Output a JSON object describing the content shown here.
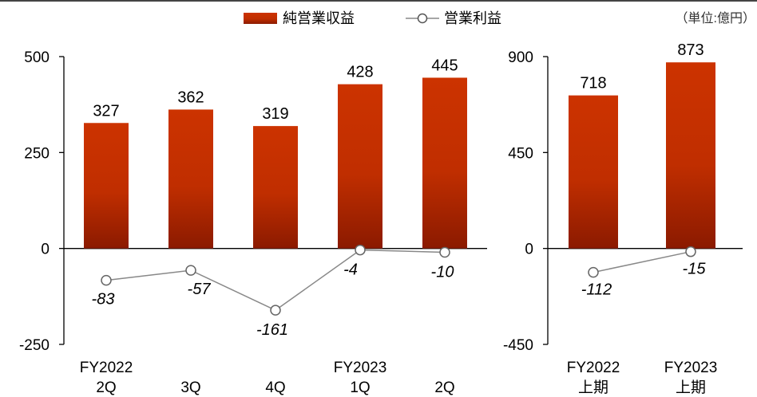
{
  "legend": {
    "bar_label": "純営業収益",
    "line_label": "営業利益"
  },
  "unit_note": "（単位:億円）",
  "colors": {
    "bar_top": "#cc3300",
    "bar_bottom": "#8b1a00",
    "line": "#888888",
    "marker_fill": "#ffffff",
    "marker_stroke": "#666666",
    "axis": "#000000"
  },
  "chart_data": [
    {
      "type": "bar",
      "ylim": [
        -250,
        500
      ],
      "yticks": [
        "500",
        "250",
        "0",
        "-250"
      ],
      "categories": [
        [
          "FY2022",
          "2Q"
        ],
        [
          "",
          "3Q"
        ],
        [
          "",
          "4Q"
        ],
        [
          "FY2023",
          "1Q"
        ],
        [
          "",
          "2Q"
        ]
      ],
      "series": [
        {
          "name": "純営業収益",
          "type": "bar",
          "values": [
            327,
            362,
            319,
            428,
            445
          ],
          "labels": [
            "327",
            "362",
            "319",
            "428",
            "445"
          ]
        },
        {
          "name": "営業利益",
          "type": "line",
          "values": [
            -83,
            -57,
            -161,
            -4,
            -10
          ],
          "labels": [
            "-83",
            "-57",
            "-161",
            "-4",
            "-10"
          ]
        }
      ]
    },
    {
      "type": "bar",
      "ylim": [
        -450,
        900
      ],
      "yticks": [
        "900",
        "450",
        "0",
        "-450"
      ],
      "categories": [
        [
          "FY2022",
          "上期"
        ],
        [
          "FY2023",
          "上期"
        ]
      ],
      "series": [
        {
          "name": "純営業収益",
          "type": "bar",
          "values": [
            718,
            873
          ],
          "labels": [
            "718",
            "873"
          ]
        },
        {
          "name": "営業利益",
          "type": "line",
          "values": [
            -112,
            -15
          ],
          "labels": [
            "-112",
            "-15"
          ]
        }
      ]
    }
  ]
}
